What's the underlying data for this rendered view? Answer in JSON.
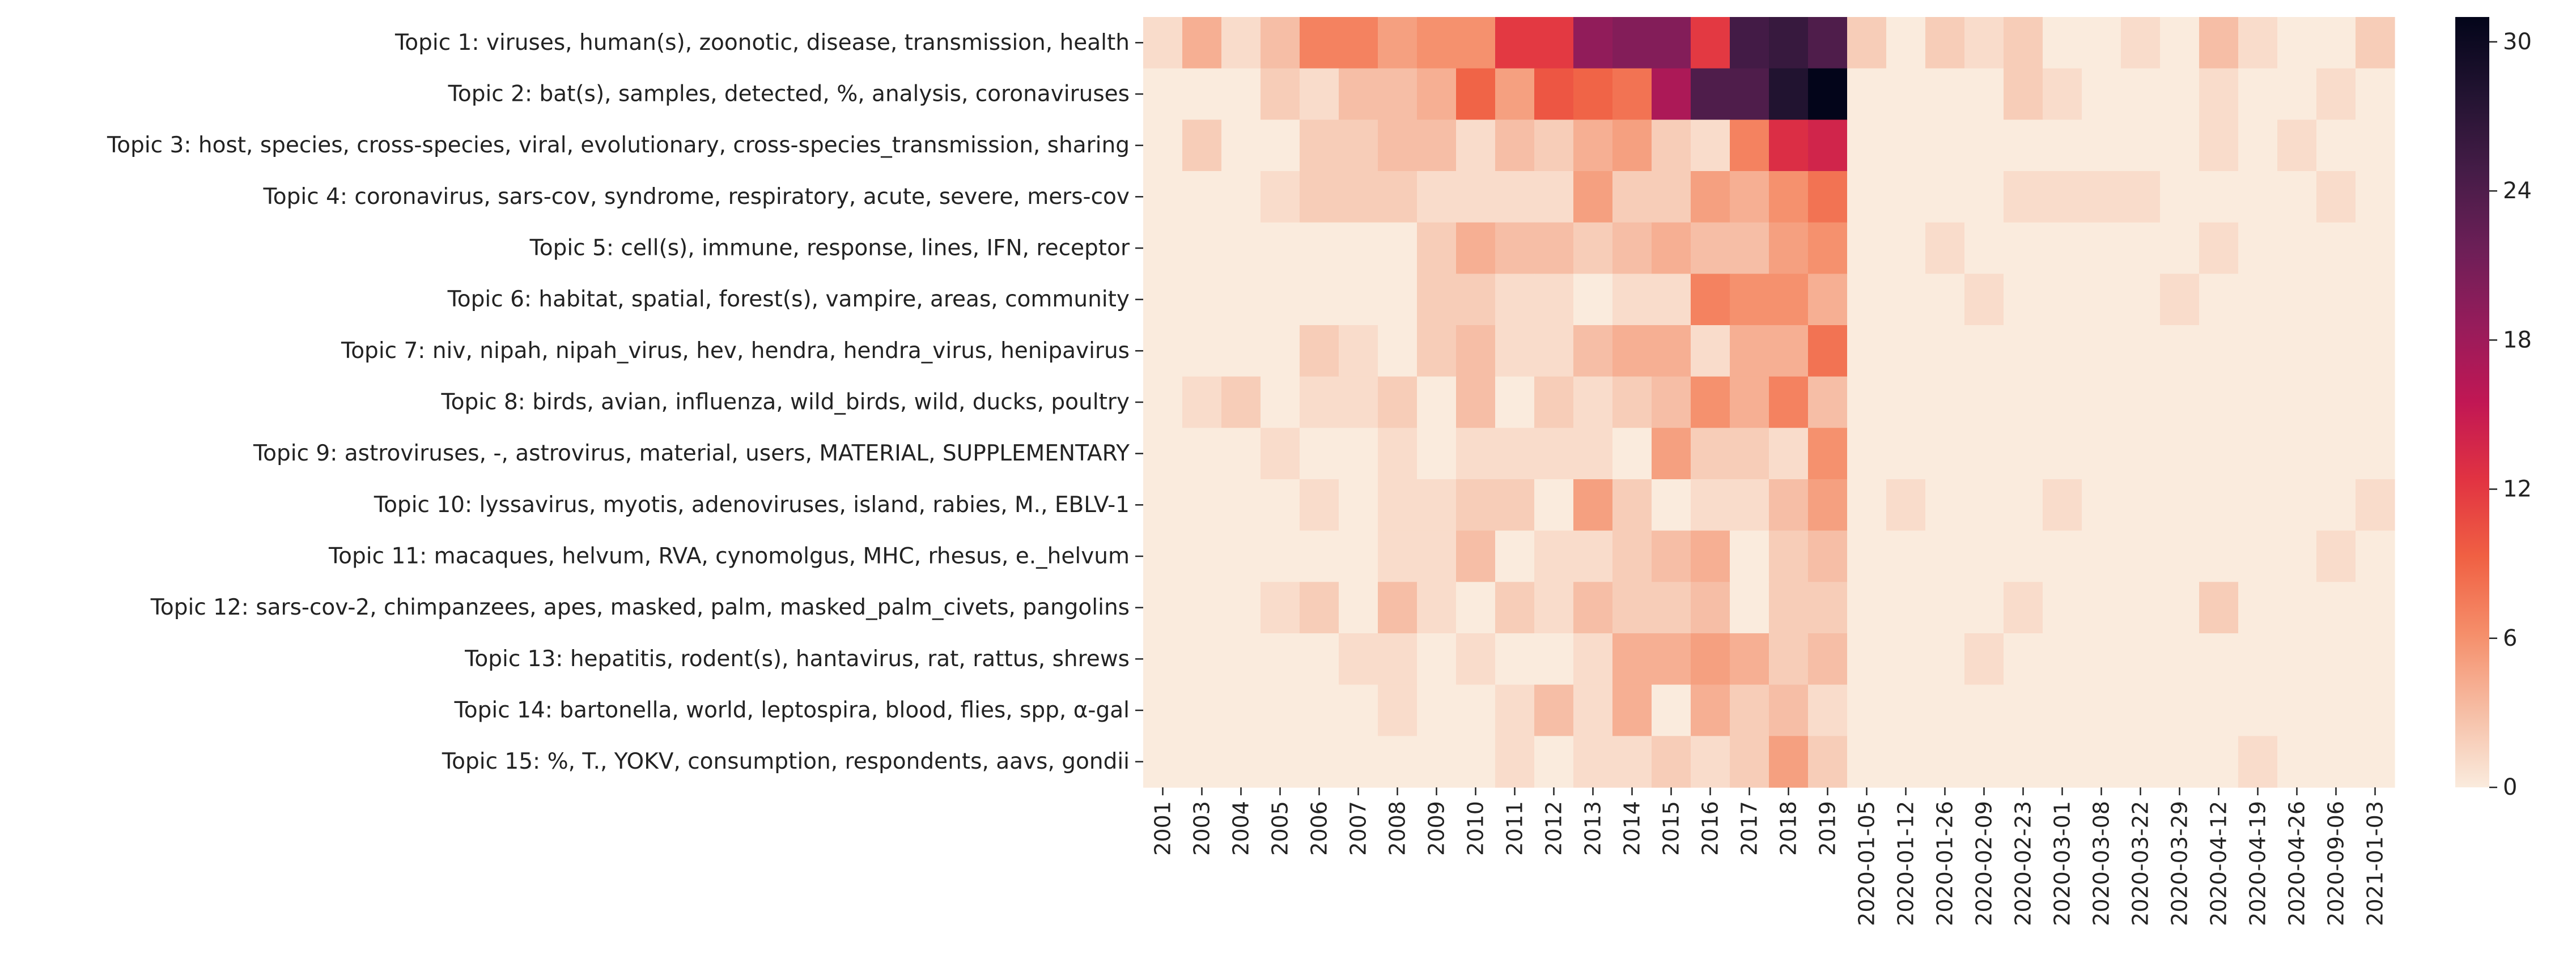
{
  "chart_data": {
    "type": "heatmap",
    "title": "",
    "xlabel": "",
    "ylabel": "",
    "rows": [
      "Topic 1: viruses, human(s), zoonotic, disease, transmission, health",
      "Topic 2: bat(s), samples, detected, %, analysis, coronaviruses",
      "Topic 3: host, species, cross-species, viral, evolutionary, cross-species_transmission, sharing",
      "Topic 4: coronavirus, sars-cov, syndrome, respiratory, acute, severe, mers-cov",
      "Topic 5: cell(s), immune, response, lines, IFN, receptor",
      "Topic 6: habitat, spatial, forest(s), vampire, areas, community",
      "Topic 7: niv, nipah, nipah_virus, hev, hendra, hendra_virus, henipavirus",
      "Topic 8: birds, avian, influenza, wild_birds, wild, ducks, poultry",
      "Topic 9: astroviruses, -, astrovirus, material, users, MATERIAL, SUPPLEMENTARY",
      "Topic 10: lyssavirus, myotis, adenoviruses, island, rabies, M., EBLV-1",
      "Topic 11: macaques, helvum, RVA, cynomolgus, MHC, rhesus, e._helvum",
      "Topic 12: sars-cov-2, chimpanzees, apes, masked, palm, masked_palm_civets, pangolins",
      "Topic 13: hepatitis, rodent(s), hantavirus, rat, rattus, shrews",
      "Topic 14: bartonella, world, leptospira, blood, flies, spp, α-gal",
      "Topic 15: %, T., YOKV, consumption, respondents, aavs, gondii"
    ],
    "columns": [
      "2001",
      "2003",
      "2004",
      "2005",
      "2006",
      "2007",
      "2008",
      "2009",
      "2010",
      "2011",
      "2012",
      "2013",
      "2014",
      "2015",
      "2016",
      "2017",
      "2018",
      "2019",
      "2020-01-05",
      "2020-01-12",
      "2020-01-26",
      "2020-02-09",
      "2020-02-23",
      "2020-03-01",
      "2020-03-08",
      "2020-03-22",
      "2020-03-29",
      "2020-04-12",
      "2020-04-19",
      "2020-04-26",
      "2020-09-06",
      "2021-01-03"
    ],
    "values": [
      [
        1,
        4,
        1,
        3,
        7,
        7,
        5,
        6,
        6,
        12,
        12,
        19,
        20,
        20,
        12,
        25,
        26,
        24,
        2,
        0,
        2,
        1,
        2,
        0,
        0,
        1,
        0,
        3,
        1,
        0,
        0,
        2
      ],
      [
        0,
        0,
        0,
        2,
        1,
        3,
        3,
        4,
        9,
        5,
        10,
        9,
        8,
        17,
        24,
        24,
        28,
        31,
        0,
        0,
        0,
        0,
        2,
        1,
        0,
        0,
        0,
        1,
        0,
        0,
        1,
        0
      ],
      [
        0,
        2,
        0,
        0,
        2,
        2,
        3,
        3,
        1,
        3,
        2,
        4,
        5,
        2,
        1,
        7,
        13,
        14,
        0,
        0,
        0,
        0,
        0,
        0,
        0,
        0,
        0,
        1,
        0,
        1,
        0,
        0
      ],
      [
        0,
        0,
        0,
        1,
        2,
        2,
        2,
        1,
        1,
        1,
        1,
        5,
        2,
        2,
        5,
        4,
        6,
        8,
        0,
        0,
        0,
        0,
        1,
        1,
        1,
        1,
        0,
        0,
        0,
        0,
        1,
        0
      ],
      [
        0,
        0,
        0,
        0,
        0,
        0,
        0,
        2,
        4,
        3,
        3,
        2,
        3,
        4,
        3,
        3,
        5,
        6,
        0,
        0,
        1,
        0,
        0,
        0,
        0,
        0,
        0,
        1,
        0,
        0,
        0,
        0
      ],
      [
        0,
        0,
        0,
        0,
        0,
        0,
        0,
        2,
        2,
        1,
        1,
        0,
        1,
        1,
        7,
        6,
        6,
        4,
        0,
        0,
        0,
        1,
        0,
        0,
        0,
        0,
        1,
        0,
        0,
        0,
        0,
        0
      ],
      [
        0,
        0,
        0,
        0,
        2,
        1,
        0,
        2,
        3,
        1,
        1,
        3,
        4,
        4,
        1,
        4,
        4,
        8,
        0,
        0,
        0,
        0,
        0,
        0,
        0,
        0,
        0,
        0,
        0,
        0,
        0,
        0
      ],
      [
        0,
        1,
        2,
        0,
        1,
        1,
        2,
        0,
        3,
        0,
        2,
        1,
        2,
        3,
        6,
        4,
        7,
        3,
        0,
        0,
        0,
        0,
        0,
        0,
        0,
        0,
        0,
        0,
        0,
        0,
        0,
        0
      ],
      [
        0,
        0,
        0,
        1,
        0,
        0,
        1,
        0,
        1,
        1,
        1,
        1,
        0,
        5,
        2,
        2,
        1,
        6,
        0,
        0,
        0,
        0,
        0,
        0,
        0,
        0,
        0,
        0,
        0,
        0,
        0,
        0
      ],
      [
        0,
        0,
        0,
        0,
        1,
        0,
        1,
        1,
        2,
        2,
        0,
        5,
        2,
        0,
        1,
        1,
        3,
        5,
        0,
        1,
        0,
        0,
        0,
        1,
        0,
        0,
        0,
        0,
        0,
        0,
        0,
        1
      ],
      [
        0,
        0,
        0,
        0,
        0,
        0,
        1,
        1,
        3,
        0,
        1,
        1,
        2,
        3,
        4,
        0,
        2,
        3,
        0,
        0,
        0,
        0,
        0,
        0,
        0,
        0,
        0,
        0,
        0,
        0,
        1,
        0
      ],
      [
        0,
        0,
        0,
        1,
        2,
        0,
        3,
        1,
        0,
        2,
        1,
        3,
        2,
        2,
        3,
        0,
        2,
        2,
        0,
        0,
        0,
        0,
        1,
        0,
        0,
        0,
        0,
        2,
        0,
        0,
        0,
        0
      ],
      [
        0,
        0,
        0,
        0,
        0,
        1,
        1,
        0,
        1,
        0,
        0,
        1,
        4,
        4,
        5,
        4,
        2,
        3,
        0,
        0,
        0,
        1,
        0,
        0,
        0,
        0,
        0,
        0,
        0,
        0,
        0,
        0
      ],
      [
        0,
        0,
        0,
        0,
        0,
        0,
        1,
        0,
        0,
        1,
        3,
        1,
        4,
        0,
        4,
        2,
        3,
        1,
        0,
        0,
        0,
        0,
        0,
        0,
        0,
        0,
        0,
        0,
        0,
        0,
        0,
        0
      ],
      [
        0,
        0,
        0,
        0,
        0,
        0,
        0,
        0,
        0,
        1,
        0,
        1,
        1,
        2,
        1,
        2,
        5,
        2,
        0,
        0,
        0,
        0,
        0,
        0,
        0,
        0,
        0,
        0,
        1,
        0,
        0,
        0
      ]
    ],
    "colorbar": {
      "min": 0,
      "max": 31,
      "ticks": [
        0,
        6,
        12,
        18,
        24,
        30
      ],
      "colormap": "rocket_r"
    }
  }
}
